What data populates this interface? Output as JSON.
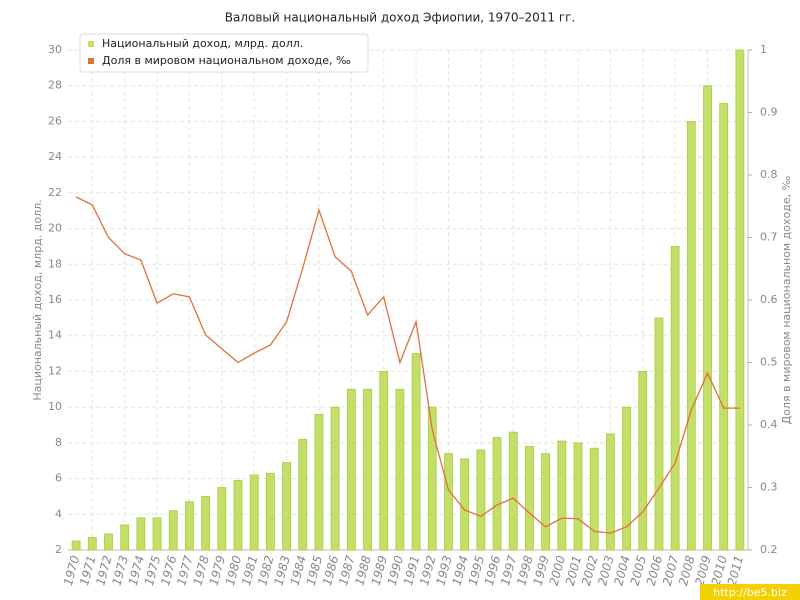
{
  "chart_data": {
    "type": "bar_line",
    "title": "Валовый национальный доход Эфиопии, 1970–2011 гг.",
    "ylabel": "Национальный доход, млрд. долл.",
    "y2label": "Доля в мировом национальном доходе, ‰",
    "watermark": "http://be5.biz",
    "categories": [
      "1970",
      "1971",
      "1972",
      "1973",
      "1974",
      "1975",
      "1976",
      "1977",
      "1978",
      "1979",
      "1980",
      "1981",
      "1982",
      "1983",
      "1984",
      "1985",
      "1986",
      "1987",
      "1988",
      "1989",
      "1990",
      "1991",
      "1992",
      "1993",
      "1994",
      "1995",
      "1996",
      "1997",
      "1998",
      "1999",
      "2000",
      "2001",
      "2002",
      "2003",
      "2004",
      "2005",
      "2006",
      "2007",
      "2008",
      "2009",
      "2010",
      "2011"
    ],
    "series": [
      {
        "name": "Национальный доход, млрд. долл.",
        "color": "#c3df6a",
        "type": "bar",
        "values": [
          2.5,
          2.7,
          2.9,
          3.4,
          3.8,
          3.8,
          4.2,
          4.7,
          5.0,
          5.5,
          5.9,
          6.2,
          6.3,
          6.9,
          8.2,
          9.6,
          10.0,
          11.0,
          11.0,
          12.0,
          11.0,
          13.0,
          10.0,
          7.4,
          7.1,
          7.6,
          8.3,
          8.6,
          7.8,
          7.4,
          8.1,
          8.0,
          7.7,
          8.5,
          10.0,
          12.0,
          15.0,
          19.0,
          26.0,
          28.0,
          27.0,
          30.0
        ]
      },
      {
        "name": "Доля в мировом национальном доходе, ‰",
        "color": "#e0703a",
        "type": "line",
        "axis": "y2",
        "values": [
          0.765,
          0.752,
          0.7,
          0.674,
          0.664,
          0.595,
          0.61,
          0.605,
          0.544,
          0.522,
          0.5,
          0.515,
          0.528,
          0.565,
          0.651,
          0.744,
          0.669,
          0.646,
          0.576,
          0.605,
          0.5,
          0.565,
          0.392,
          0.296,
          0.264,
          0.254,
          0.272,
          0.283,
          0.259,
          0.237,
          0.251,
          0.25,
          0.23,
          0.227,
          0.237,
          0.261,
          0.299,
          0.339,
          0.424,
          0.483,
          0.427,
          0.427
        ]
      }
    ],
    "ylim": [
      2,
      30
    ],
    "yticks": [
      2,
      4,
      6,
      8,
      10,
      12,
      14,
      16,
      18,
      20,
      22,
      24,
      26,
      28,
      30
    ],
    "y2lim": [
      0.2,
      1
    ],
    "y2ticks": [
      0.2,
      0.3,
      0.4,
      0.5,
      0.6,
      0.7,
      0.8,
      0.9,
      1
    ],
    "grid": true,
    "legend": "top-left"
  }
}
